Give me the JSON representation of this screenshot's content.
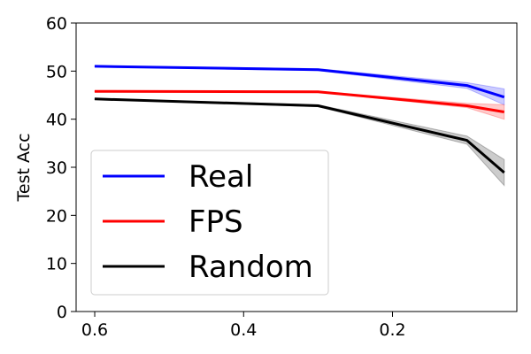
{
  "chart_data": {
    "type": "line",
    "title": "",
    "xlabel": "",
    "ylabel": "Test Acc",
    "xlim": [
      0.625,
      0.033
    ],
    "ylim": [
      0,
      60
    ],
    "x_inverted": true,
    "grid": false,
    "legend_position": "lower-left",
    "x_ticks": [
      0.6,
      0.4,
      0.2
    ],
    "x_tick_labels": [
      "0.6",
      "0.4",
      "0.2"
    ],
    "y_ticks": [
      0,
      10,
      20,
      30,
      40,
      50,
      60
    ],
    "y_tick_labels": [
      "0",
      "10",
      "20",
      "30",
      "40",
      "50",
      "60"
    ],
    "x": [
      0.6,
      0.3,
      0.1,
      0.05
    ],
    "series": [
      {
        "name": "Real",
        "color": "#0000ff",
        "values": [
          51.0,
          50.3,
          47.0,
          44.6
        ],
        "lower": [
          50.9,
          50.1,
          46.4,
          43.0
        ],
        "upper": [
          51.1,
          50.5,
          47.6,
          46.3
        ]
      },
      {
        "name": "FPS",
        "color": "#ff0000",
        "values": [
          45.8,
          45.7,
          42.8,
          41.5
        ],
        "lower": [
          45.7,
          45.6,
          42.4,
          40.0
        ],
        "upper": [
          45.9,
          45.8,
          43.3,
          43.0
        ]
      },
      {
        "name": "Random",
        "color": "#000000",
        "values": [
          44.2,
          42.8,
          35.6,
          28.9
        ],
        "lower": [
          44.1,
          42.6,
          34.8,
          26.2
        ],
        "upper": [
          44.3,
          43.0,
          36.5,
          31.6
        ]
      }
    ]
  }
}
